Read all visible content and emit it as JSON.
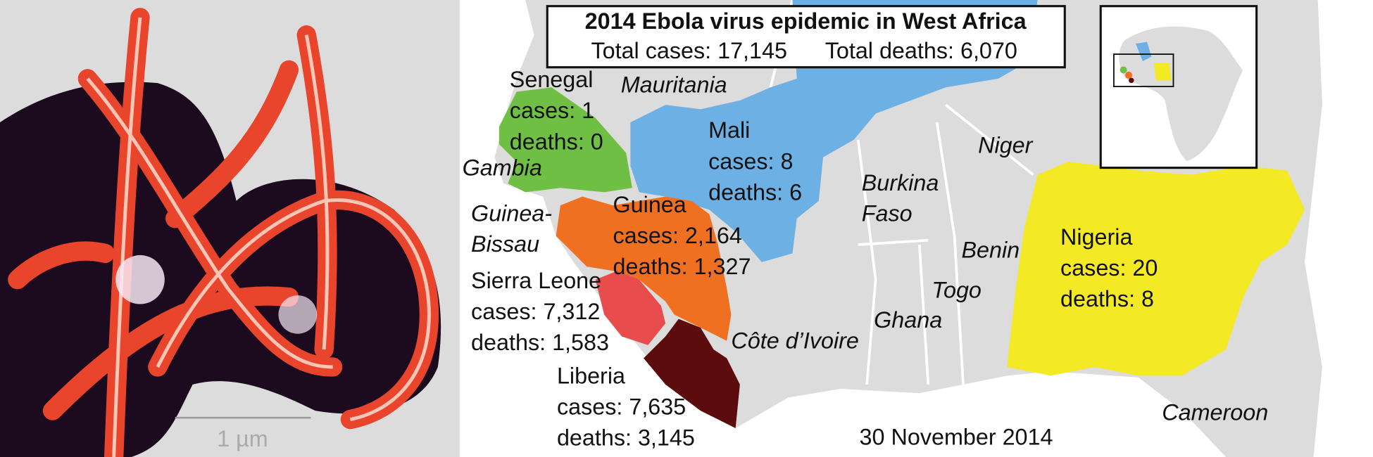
{
  "micrograph": {
    "scale_label": "1 µm"
  },
  "map": {
    "title": "2014 Ebola virus epidemic in West Africa",
    "total_cases": "Total cases: 17,145",
    "total_deaths": "Total deaths: 6,070",
    "affected": [
      {
        "name": "Senegal",
        "cases": "cases: 1",
        "deaths": "deaths: 0"
      },
      {
        "name": "Mali",
        "cases": "cases: 8",
        "deaths": "deaths: 6"
      },
      {
        "name": "Guinea",
        "cases": "cases: 2,164",
        "deaths": "deaths: 1,327"
      },
      {
        "name": "Sierra Leone",
        "cases": "cases: 7,312",
        "deaths": "deaths: 1,583"
      },
      {
        "name": "Liberia",
        "cases": "cases: 7,635",
        "deaths": "deaths: 3,145"
      },
      {
        "name": "Nigeria",
        "cases": "cases: 20",
        "deaths": "deaths: 8"
      }
    ],
    "other_countries": [
      {
        "lines": [
          "Mauritania"
        ]
      },
      {
        "lines": [
          "Gambia"
        ]
      },
      {
        "lines": [
          "Guinea-",
          "Bissau"
        ]
      },
      {
        "lines": [
          "Burkina",
          "Faso"
        ]
      },
      {
        "lines": [
          "Niger"
        ]
      },
      {
        "lines": [
          "Benin"
        ]
      },
      {
        "lines": [
          "Togo"
        ]
      },
      {
        "lines": [
          "Ghana"
        ]
      },
      {
        "lines": [
          "Côte d’Ivoire"
        ]
      },
      {
        "lines": [
          "Cameroon"
        ]
      }
    ],
    "date": "30 November 2014"
  }
}
